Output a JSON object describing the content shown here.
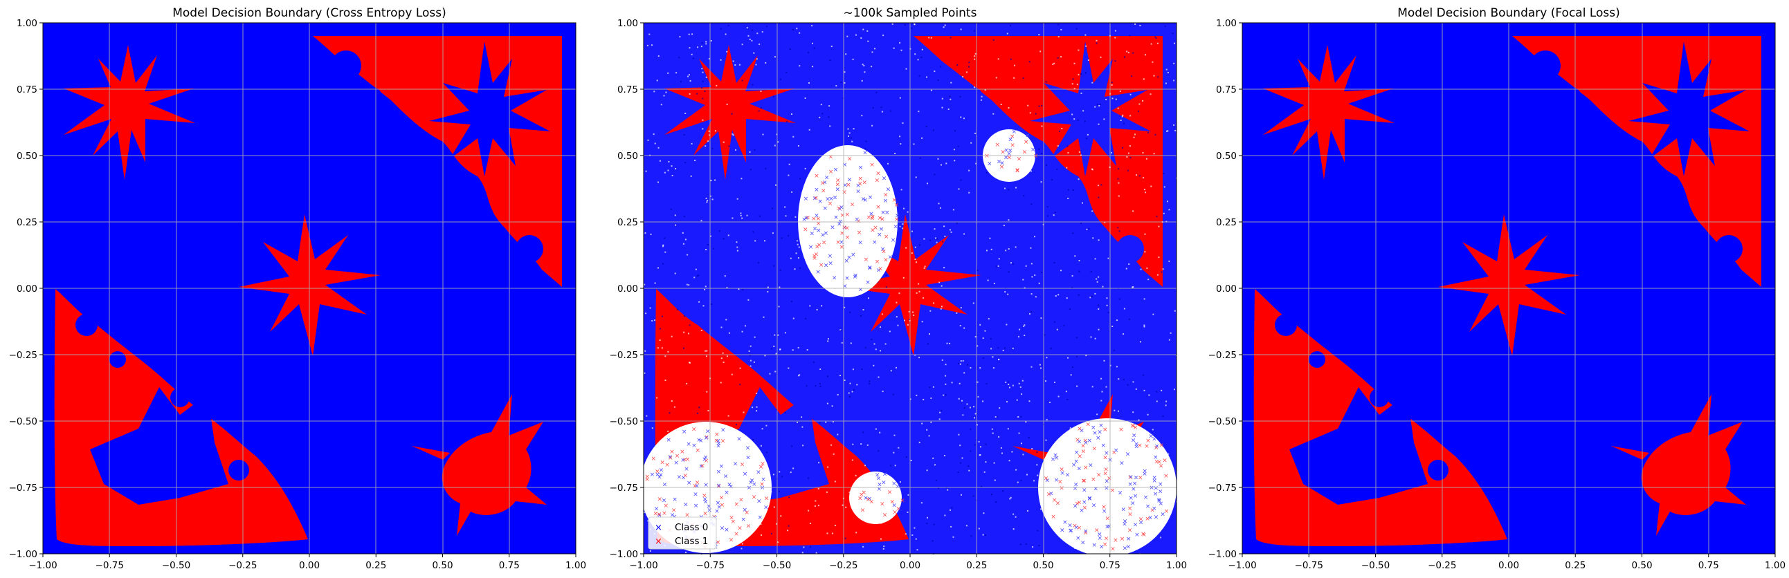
{
  "figure": {
    "background": "#ffffff"
  },
  "colors": {
    "class0": "#0000ff",
    "class1": "#ff0000",
    "grid": "#b0b0b0",
    "white": "#ffffff"
  },
  "ticks": [
    "−1.00",
    "−0.75",
    "−0.50",
    "−0.25",
    "0.00",
    "0.25",
    "0.50",
    "0.75",
    "1.00"
  ],
  "chart_data": [
    {
      "type": "heatmap",
      "title": "Model Decision Boundary (Cross Entropy Loss)",
      "xlim": [
        -1,
        1
      ],
      "ylim": [
        -1,
        1
      ],
      "grid": true,
      "classes": [
        "Class 0",
        "Class 1"
      ]
    },
    {
      "type": "scatter",
      "title": "~100k Sampled Points",
      "xlim": [
        -1,
        1
      ],
      "ylim": [
        -1,
        1
      ],
      "grid": true,
      "legend": {
        "placement": "lower-left",
        "entries": [
          "Class 0",
          "Class 1"
        ]
      },
      "approx_points": 100000
    },
    {
      "type": "heatmap",
      "title": "Model Decision Boundary (Focal Loss)",
      "xlim": [
        -1,
        1
      ],
      "ylim": [
        -1,
        1
      ],
      "grid": true,
      "classes": [
        "Class 0",
        "Class 1"
      ]
    }
  ]
}
